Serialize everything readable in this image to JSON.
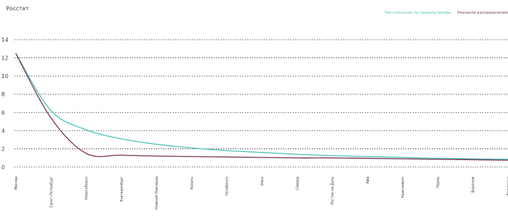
{
  "source": "Росстат",
  "chart_data": {
    "type": "line",
    "categories": [
      "Москва",
      "Санкт-Петербург",
      "Новосибирск",
      "Екатеринбург",
      "Нижний Новгород",
      "Казань",
      "Челябинск",
      "Омск",
      "Самара",
      "Ростов-на-Дону",
      "Уфа",
      "Красноярск",
      "Пермь",
      "Воронеж",
      "Волгоград"
    ],
    "series": [
      {
        "name": "Рассчитанное по правилу Ципфа",
        "color": "#4fc4b6",
        "values": [
          12.5,
          6.2,
          4.1,
          3.1,
          2.5,
          2.1,
          1.8,
          1.6,
          1.4,
          1.25,
          1.15,
          1.05,
          0.95,
          0.9,
          0.85
        ]
      },
      {
        "name": "Реальное распределение",
        "color": "#7b3a5a",
        "values": [
          12.5,
          5.4,
          1.5,
          1.3,
          1.2,
          1.15,
          1.1,
          1.05,
          1.0,
          1.0,
          0.95,
          0.9,
          0.85,
          0.8,
          0.75
        ]
      }
    ],
    "yticks": [
      0,
      2,
      4,
      6,
      8,
      10,
      12,
      14
    ],
    "ylim": [
      0,
      14
    ],
    "grid": true,
    "legend_position": "top-right"
  }
}
